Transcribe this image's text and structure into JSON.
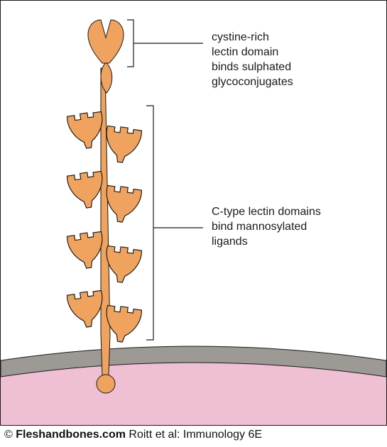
{
  "labels": {
    "cysteine_domain": "cystine-rich\nlectin domain\nbinds sulphated\nglycoconjugates",
    "ctype_domains": "C-type lectin domains\nbind mannosylated\nligands"
  },
  "footer": {
    "copyright": "©",
    "brand": "Fleshandbones.com",
    "citation": "Roitt et al: Immunology 6E"
  },
  "colors": {
    "domain": "#f0a35e",
    "membrane_outer": "#9d9994",
    "membrane_inner": "#efc0d3",
    "outline": "#1a1a1a"
  }
}
